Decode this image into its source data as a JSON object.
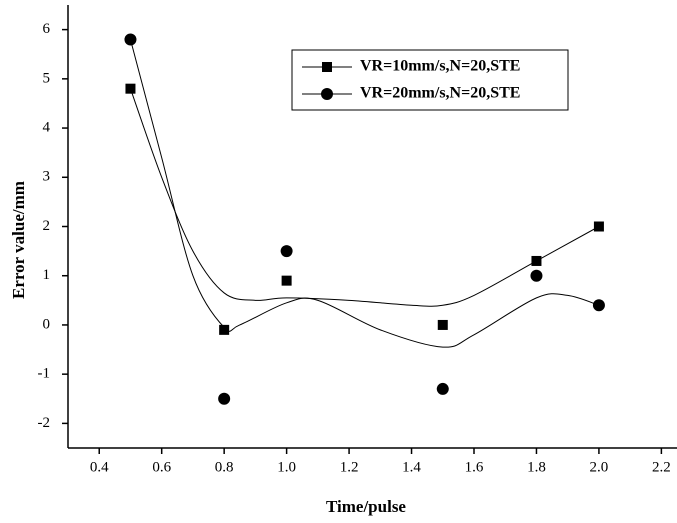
{
  "chart_data": {
    "type": "scatter",
    "x_label": "Time/pulse",
    "y_label": "Error value/mm",
    "series": [
      {
        "name": "VR=10mm/s,N=20,STE",
        "color": "#000000",
        "marker": "square",
        "x": [
          0.5,
          0.8,
          1.0,
          1.5,
          1.8,
          2.0
        ],
        "values": [
          4.8,
          -0.1,
          0.9,
          0.0,
          1.3,
          2.0
        ],
        "curve": {
          "x": [
            0.5,
            0.6,
            0.7,
            0.8,
            0.9,
            1.0,
            1.2,
            1.4,
            1.5,
            1.6,
            1.8,
            2.0
          ],
          "y": [
            4.8,
            3.0,
            1.5,
            0.65,
            0.5,
            0.55,
            0.5,
            0.4,
            0.4,
            0.6,
            1.3,
            2.0
          ]
        }
      },
      {
        "name": "VR=20mm/s,N=20,STE",
        "color": "#000000",
        "marker": "circle",
        "x": [
          0.5,
          0.8,
          1.0,
          1.5,
          1.8,
          2.0
        ],
        "values": [
          5.8,
          -1.5,
          1.5,
          -1.3,
          1.0,
          0.4
        ],
        "curve": {
          "x": [
            0.5,
            0.6,
            0.7,
            0.8,
            0.85,
            1.0,
            1.1,
            1.3,
            1.5,
            1.6,
            1.8,
            1.9,
            2.0
          ],
          "y": [
            5.8,
            3.4,
            1.0,
            -0.05,
            0.0,
            0.45,
            0.5,
            -0.1,
            -0.45,
            -0.2,
            0.55,
            0.6,
            0.4
          ]
        }
      }
    ],
    "xlim": [
      0.3,
      2.25
    ],
    "ylim": [
      -2.5,
      6.5
    ],
    "xticks": [
      0.4,
      0.6,
      0.8,
      {
        "value": 1.0,
        "label": "1.0"
      },
      1.2,
      1.4,
      1.6,
      1.8,
      {
        "value": 2.0,
        "label": "2.0"
      },
      2.2
    ],
    "yticks": [
      -2,
      -1,
      0,
      1,
      2,
      3,
      4,
      5,
      6
    ],
    "grid": false,
    "legend": "upper right"
  }
}
